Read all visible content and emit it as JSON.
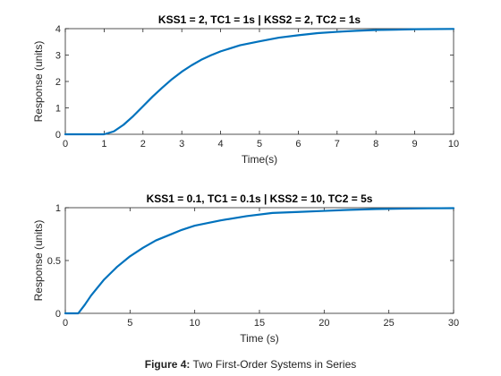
{
  "caption": {
    "label": "Figure 4:",
    "text": "Two First-Order Systems in Series"
  },
  "chart_data": [
    {
      "type": "line",
      "title": "KSS1 = 2, TC1 = 1s | KSS2 = 2, TC2 = 1s",
      "xlabel": "Time(s)",
      "ylabel": "Response (units)",
      "xlim": [
        0,
        10
      ],
      "ylim": [
        0,
        4
      ],
      "xticks": [
        0,
        1,
        2,
        3,
        4,
        5,
        6,
        7,
        8,
        9,
        10
      ],
      "yticks": [
        0,
        1,
        2,
        3,
        4
      ],
      "xtick_labels": [
        "0",
        "1",
        "2",
        "3",
        "4",
        "5",
        "6",
        "7",
        "8",
        "9",
        "10"
      ],
      "ytick_labels": [
        "0",
        "1",
        "2",
        "3",
        "4"
      ],
      "grid": false,
      "line_color": "#0072BD",
      "series": [
        {
          "x": [
            0,
            1,
            1.25,
            1.5,
            1.75,
            2,
            2.25,
            2.5,
            2.75,
            3,
            3.25,
            3.5,
            3.75,
            4,
            4.5,
            5,
            5.5,
            6,
            6.5,
            7,
            7.5,
            8,
            8.5,
            9,
            10
          ],
          "values": [
            0,
            0,
            0.11,
            0.36,
            0.69,
            1.06,
            1.43,
            1.77,
            2.09,
            2.37,
            2.61,
            2.82,
            2.99,
            3.14,
            3.37,
            3.52,
            3.66,
            3.75,
            3.83,
            3.88,
            3.92,
            3.95,
            3.96,
            3.98,
            3.99
          ]
        }
      ]
    },
    {
      "type": "line",
      "title": "KSS1 = 0.1, TC1 = 0.1s | KSS2 = 10, TC2 = 5s",
      "xlabel": "Time (s)",
      "ylabel": "Response (units)",
      "xlim": [
        0,
        30
      ],
      "ylim": [
        0,
        1
      ],
      "xticks": [
        0,
        5,
        10,
        15,
        20,
        25,
        30
      ],
      "yticks": [
        0,
        0.5,
        1
      ],
      "xtick_labels": [
        "0",
        "5",
        "10",
        "15",
        "20",
        "25",
        "30"
      ],
      "ytick_labels": [
        "0",
        "0.5",
        "1"
      ],
      "grid": false,
      "line_color": "#0072BD",
      "series": [
        {
          "x": [
            0,
            1,
            1.5,
            2,
            3,
            4,
            5,
            6,
            7,
            8,
            9,
            10,
            12,
            14,
            16,
            18,
            20,
            22,
            24,
            26,
            28,
            30
          ],
          "values": [
            0,
            0,
            0.08,
            0.17,
            0.32,
            0.44,
            0.54,
            0.62,
            0.69,
            0.74,
            0.79,
            0.83,
            0.88,
            0.92,
            0.95,
            0.96,
            0.97,
            0.98,
            0.987,
            0.991,
            0.994,
            0.996
          ]
        }
      ]
    }
  ]
}
